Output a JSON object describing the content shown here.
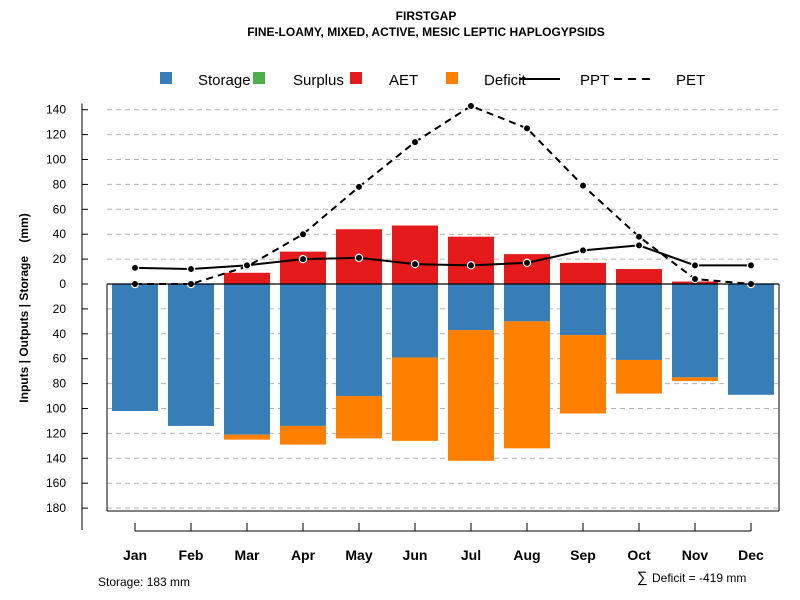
{
  "chart_data": {
    "type": "bar",
    "title": "FIRSTGAP",
    "subtitle": "FINE-LOAMY, MIXED, ACTIVE, MESIC LEPTIC HAPLOGYPSIDS",
    "ylabel": "Inputs | Outputs | Storage    (mm)",
    "xlabel": "",
    "categories": [
      "Jan",
      "Feb",
      "Mar",
      "Apr",
      "May",
      "Jun",
      "Jul",
      "Aug",
      "Sep",
      "Oct",
      "Nov",
      "Dec"
    ],
    "ylim": [
      -182,
      145
    ],
    "yticks": [
      140,
      120,
      100,
      80,
      60,
      40,
      20,
      0,
      -20,
      -40,
      -60,
      -80,
      -100,
      -120,
      -140,
      -160,
      -180
    ],
    "ytick_labels": [
      "140",
      "120",
      "100",
      "80",
      "60",
      "40",
      "20",
      "0",
      "20",
      "40",
      "60",
      "80",
      "100",
      "120",
      "140",
      "160",
      "180"
    ],
    "grid": true,
    "legend": {
      "placement": "top",
      "items": [
        {
          "name": "Storage",
          "kind": "box",
          "color": "#377EB8"
        },
        {
          "name": "Surplus",
          "kind": "box",
          "color": "#4DAF4A"
        },
        {
          "name": "AET",
          "kind": "box",
          "color": "#E41A1C"
        },
        {
          "name": "Deficit",
          "kind": "box",
          "color": "#FF7F00"
        },
        {
          "name": "PPT",
          "kind": "solid-line",
          "color": "#000000"
        },
        {
          "name": "PET",
          "kind": "dashed-line",
          "color": "#000000"
        }
      ]
    },
    "series": [
      {
        "name": "AET",
        "color": "#E41A1C",
        "stack": "up",
        "values": [
          0,
          0,
          9,
          26,
          44,
          47,
          38,
          24,
          17,
          12,
          2,
          0
        ]
      },
      {
        "name": "Surplus",
        "color": "#4DAF4A",
        "stack": "up",
        "values": [
          0,
          0,
          0,
          0,
          0,
          0,
          0,
          0,
          0,
          0,
          0,
          0
        ]
      },
      {
        "name": "Storage",
        "color": "#377EB8",
        "stack": "down",
        "values": [
          102,
          114,
          121,
          114,
          90,
          59,
          37,
          30,
          41,
          61,
          75,
          89
        ]
      },
      {
        "name": "Deficit",
        "color": "#FF7F00",
        "stack": "down",
        "values": [
          0,
          0,
          4,
          15,
          34,
          67,
          105,
          102,
          63,
          27,
          3,
          0
        ]
      },
      {
        "name": "PPT",
        "color": "#000000",
        "style": "solid",
        "values": [
          13,
          12,
          15,
          20,
          21,
          16,
          15,
          17,
          27,
          31,
          15,
          15
        ]
      },
      {
        "name": "PET",
        "color": "#000000",
        "style": "dashed",
        "values": [
          0,
          0,
          14,
          40,
          78,
          114,
          143,
          125,
          79,
          38,
          4,
          0
        ]
      }
    ],
    "annotations": {
      "storage": "Storage: 183 mm",
      "deficit_symbol": "∑",
      "deficit": "Deficit = -419 mm"
    }
  }
}
